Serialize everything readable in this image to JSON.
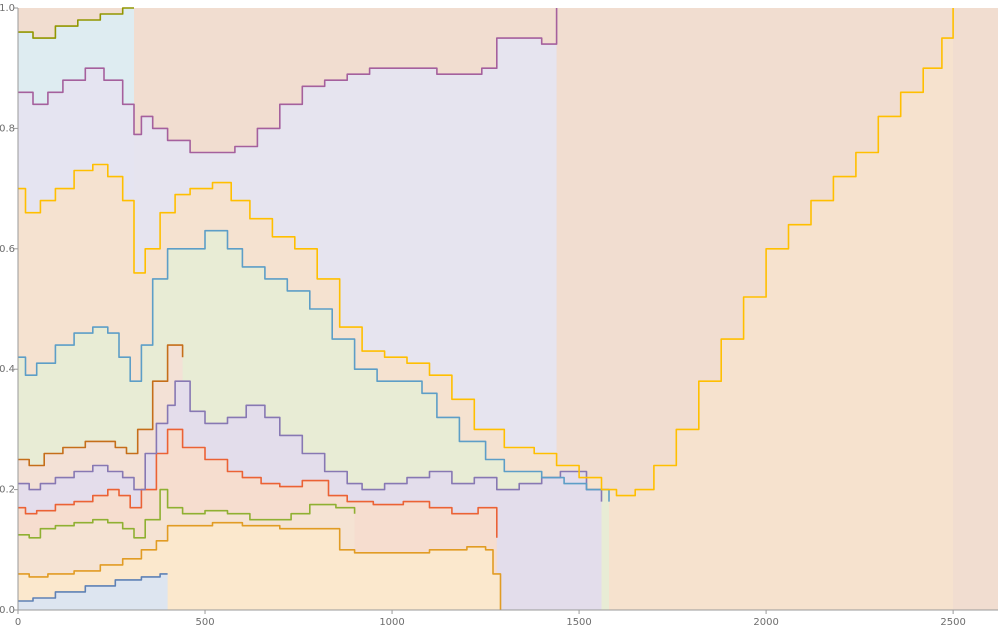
{
  "chart_data": {
    "type": "area",
    "title": "",
    "xlabel": "",
    "ylabel": "",
    "xlim": [
      0,
      2620
    ],
    "ylim": [
      0,
      1.0
    ],
    "grid": false,
    "legend": "none",
    "x_ticks": [
      0,
      500,
      1000,
      1500,
      2000,
      2500
    ],
    "y_ticks": [
      0.0,
      0.2,
      0.4,
      0.6,
      0.8,
      1.0
    ],
    "x_tick_labels": [
      "0",
      "500",
      "1000",
      "1500",
      "2000",
      "2500"
    ],
    "y_tick_labels": [
      "0.0",
      "0.2",
      "0.4",
      "0.6",
      "0.8",
      "1.0"
    ],
    "colors": {
      "axis": "#9a9a9a",
      "bands": [
        "#dbe5f1",
        "#fbe8cc",
        "#f4e3d3",
        "#f7dccd",
        "#e3dcec",
        "#f3e0d6",
        "#e7ecd5",
        "#f6e2cd",
        "#e5e4f0",
        "#dcecf2",
        "#f5dde0"
      ],
      "lines": [
        "#5e81b5",
        "#e19c24",
        "#8fb032",
        "#eb6235",
        "#8778b3",
        "#c56e1a",
        "#5d9ec7",
        "#ffbf00",
        "#a5609d",
        "#929600",
        "#e95536",
        "#6685d9",
        "#f89f13",
        "#bc5b80",
        "#47b66d"
      ]
    },
    "series": [
      {
        "values": [
          [
            0,
            0.015
          ],
          [
            40,
            0.02
          ],
          [
            100,
            0.03
          ],
          [
            180,
            0.04
          ],
          [
            260,
            0.05
          ],
          [
            330,
            0.055
          ],
          [
            380,
            0.06
          ],
          [
            400,
            0.06
          ]
        ]
      },
      {
        "values": [
          [
            0,
            0.06
          ],
          [
            30,
            0.055
          ],
          [
            80,
            0.06
          ],
          [
            150,
            0.065
          ],
          [
            220,
            0.075
          ],
          [
            280,
            0.085
          ],
          [
            330,
            0.1
          ],
          [
            370,
            0.115
          ],
          [
            400,
            0.14
          ],
          [
            440,
            0.14
          ],
          [
            520,
            0.145
          ],
          [
            600,
            0.14
          ],
          [
            700,
            0.135
          ],
          [
            800,
            0.135
          ],
          [
            860,
            0.1
          ],
          [
            900,
            0.095
          ],
          [
            1000,
            0.095
          ],
          [
            1100,
            0.1
          ],
          [
            1200,
            0.105
          ],
          [
            1250,
            0.1
          ],
          [
            1270,
            0.06
          ],
          [
            1290,
            0.0
          ]
        ]
      },
      {
        "values": [
          [
            0,
            0.125
          ],
          [
            30,
            0.12
          ],
          [
            60,
            0.135
          ],
          [
            100,
            0.14
          ],
          [
            150,
            0.145
          ],
          [
            200,
            0.15
          ],
          [
            240,
            0.145
          ],
          [
            280,
            0.135
          ],
          [
            310,
            0.12
          ],
          [
            340,
            0.15
          ],
          [
            380,
            0.2
          ],
          [
            400,
            0.17
          ],
          [
            440,
            0.16
          ],
          [
            500,
            0.165
          ],
          [
            560,
            0.16
          ],
          [
            620,
            0.15
          ],
          [
            680,
            0.15
          ],
          [
            730,
            0.16
          ],
          [
            780,
            0.175
          ],
          [
            850,
            0.17
          ],
          [
            900,
            0.16
          ]
        ]
      },
      {
        "values": [
          [
            0,
            0.17
          ],
          [
            20,
            0.16
          ],
          [
            50,
            0.165
          ],
          [
            100,
            0.175
          ],
          [
            150,
            0.18
          ],
          [
            200,
            0.19
          ],
          [
            240,
            0.2
          ],
          [
            270,
            0.19
          ],
          [
            300,
            0.17
          ],
          [
            330,
            0.2
          ],
          [
            370,
            0.26
          ],
          [
            400,
            0.3
          ],
          [
            440,
            0.27
          ],
          [
            500,
            0.25
          ],
          [
            560,
            0.23
          ],
          [
            600,
            0.22
          ],
          [
            650,
            0.21
          ],
          [
            700,
            0.205
          ],
          [
            760,
            0.215
          ],
          [
            830,
            0.19
          ],
          [
            880,
            0.18
          ],
          [
            950,
            0.175
          ],
          [
            1030,
            0.18
          ],
          [
            1100,
            0.17
          ],
          [
            1160,
            0.16
          ],
          [
            1230,
            0.17
          ],
          [
            1280,
            0.12
          ]
        ]
      },
      {
        "values": [
          [
            0,
            0.21
          ],
          [
            30,
            0.2
          ],
          [
            60,
            0.21
          ],
          [
            100,
            0.22
          ],
          [
            150,
            0.23
          ],
          [
            200,
            0.24
          ],
          [
            240,
            0.23
          ],
          [
            280,
            0.22
          ],
          [
            310,
            0.2
          ],
          [
            340,
            0.26
          ],
          [
            370,
            0.31
          ],
          [
            400,
            0.34
          ],
          [
            420,
            0.38
          ],
          [
            460,
            0.33
          ],
          [
            500,
            0.31
          ],
          [
            560,
            0.32
          ],
          [
            610,
            0.34
          ],
          [
            660,
            0.32
          ],
          [
            700,
            0.29
          ],
          [
            760,
            0.26
          ],
          [
            820,
            0.23
          ],
          [
            880,
            0.21
          ],
          [
            920,
            0.2
          ],
          [
            980,
            0.21
          ],
          [
            1040,
            0.22
          ],
          [
            1100,
            0.23
          ],
          [
            1160,
            0.21
          ],
          [
            1220,
            0.22
          ],
          [
            1280,
            0.2
          ],
          [
            1340,
            0.21
          ],
          [
            1400,
            0.22
          ],
          [
            1450,
            0.23
          ],
          [
            1520,
            0.2
          ],
          [
            1560,
            0.18
          ]
        ]
      },
      {
        "values": [
          [
            0,
            0.25
          ],
          [
            30,
            0.24
          ],
          [
            70,
            0.26
          ],
          [
            120,
            0.27
          ],
          [
            180,
            0.28
          ],
          [
            220,
            0.28
          ],
          [
            260,
            0.27
          ],
          [
            290,
            0.26
          ],
          [
            320,
            0.3
          ],
          [
            360,
            0.38
          ],
          [
            400,
            0.44
          ],
          [
            440,
            0.42
          ]
        ]
      },
      {
        "values": [
          [
            0,
            0.42
          ],
          [
            20,
            0.39
          ],
          [
            50,
            0.41
          ],
          [
            100,
            0.44
          ],
          [
            150,
            0.46
          ],
          [
            200,
            0.47
          ],
          [
            240,
            0.46
          ],
          [
            270,
            0.42
          ],
          [
            300,
            0.38
          ],
          [
            330,
            0.44
          ],
          [
            360,
            0.55
          ],
          [
            400,
            0.6
          ],
          [
            440,
            0.6
          ],
          [
            500,
            0.63
          ],
          [
            560,
            0.6
          ],
          [
            600,
            0.57
          ],
          [
            660,
            0.55
          ],
          [
            720,
            0.53
          ],
          [
            780,
            0.5
          ],
          [
            840,
            0.45
          ],
          [
            900,
            0.4
          ],
          [
            960,
            0.38
          ],
          [
            1020,
            0.38
          ],
          [
            1080,
            0.36
          ],
          [
            1120,
            0.32
          ],
          [
            1180,
            0.28
          ],
          [
            1250,
            0.25
          ],
          [
            1300,
            0.23
          ],
          [
            1360,
            0.23
          ],
          [
            1400,
            0.22
          ],
          [
            1460,
            0.21
          ],
          [
            1520,
            0.2
          ],
          [
            1580,
            0.18
          ]
        ]
      },
      {
        "values": [
          [
            0,
            0.7
          ],
          [
            20,
            0.66
          ],
          [
            60,
            0.68
          ],
          [
            100,
            0.7
          ],
          [
            150,
            0.73
          ],
          [
            200,
            0.74
          ],
          [
            240,
            0.72
          ],
          [
            280,
            0.68
          ],
          [
            310,
            0.56
          ],
          [
            340,
            0.6
          ],
          [
            380,
            0.66
          ],
          [
            420,
            0.69
          ],
          [
            460,
            0.7
          ],
          [
            520,
            0.71
          ],
          [
            570,
            0.68
          ],
          [
            620,
            0.65
          ],
          [
            680,
            0.62
          ],
          [
            740,
            0.6
          ],
          [
            800,
            0.55
          ],
          [
            860,
            0.47
          ],
          [
            920,
            0.43
          ],
          [
            980,
            0.42
          ],
          [
            1040,
            0.41
          ],
          [
            1100,
            0.39
          ],
          [
            1160,
            0.35
          ],
          [
            1220,
            0.3
          ],
          [
            1300,
            0.27
          ],
          [
            1380,
            0.26
          ],
          [
            1440,
            0.24
          ],
          [
            1500,
            0.22
          ],
          [
            1560,
            0.2
          ],
          [
            1600,
            0.19
          ],
          [
            1650,
            0.2
          ],
          [
            1700,
            0.24
          ],
          [
            1760,
            0.3
          ],
          [
            1820,
            0.38
          ],
          [
            1880,
            0.45
          ],
          [
            1940,
            0.52
          ],
          [
            2000,
            0.6
          ],
          [
            2060,
            0.64
          ],
          [
            2120,
            0.68
          ],
          [
            2180,
            0.72
          ],
          [
            2240,
            0.76
          ],
          [
            2300,
            0.82
          ],
          [
            2360,
            0.86
          ],
          [
            2420,
            0.9
          ],
          [
            2470,
            0.95
          ],
          [
            2500,
            1.0
          ]
        ]
      },
      {
        "values": [
          [
            0,
            0.86
          ],
          [
            40,
            0.84
          ],
          [
            80,
            0.86
          ],
          [
            120,
            0.88
          ],
          [
            180,
            0.9
          ],
          [
            230,
            0.88
          ],
          [
            280,
            0.84
          ],
          [
            310,
            0.79
          ],
          [
            330,
            0.82
          ],
          [
            360,
            0.8
          ],
          [
            400,
            0.78
          ],
          [
            460,
            0.76
          ],
          [
            520,
            0.76
          ],
          [
            580,
            0.77
          ],
          [
            640,
            0.8
          ],
          [
            700,
            0.84
          ],
          [
            760,
            0.87
          ],
          [
            820,
            0.88
          ],
          [
            880,
            0.89
          ],
          [
            940,
            0.9
          ],
          [
            1000,
            0.9
          ],
          [
            1060,
            0.9
          ],
          [
            1120,
            0.89
          ],
          [
            1180,
            0.89
          ],
          [
            1240,
            0.9
          ],
          [
            1280,
            0.95
          ],
          [
            1340,
            0.95
          ],
          [
            1400,
            0.94
          ],
          [
            1440,
            1.0
          ]
        ]
      },
      {
        "values": [
          [
            0,
            0.96
          ],
          [
            40,
            0.95
          ],
          [
            100,
            0.97
          ],
          [
            160,
            0.98
          ],
          [
            220,
            0.99
          ],
          [
            280,
            1.0
          ],
          [
            310,
            1.0
          ]
        ]
      }
    ]
  }
}
